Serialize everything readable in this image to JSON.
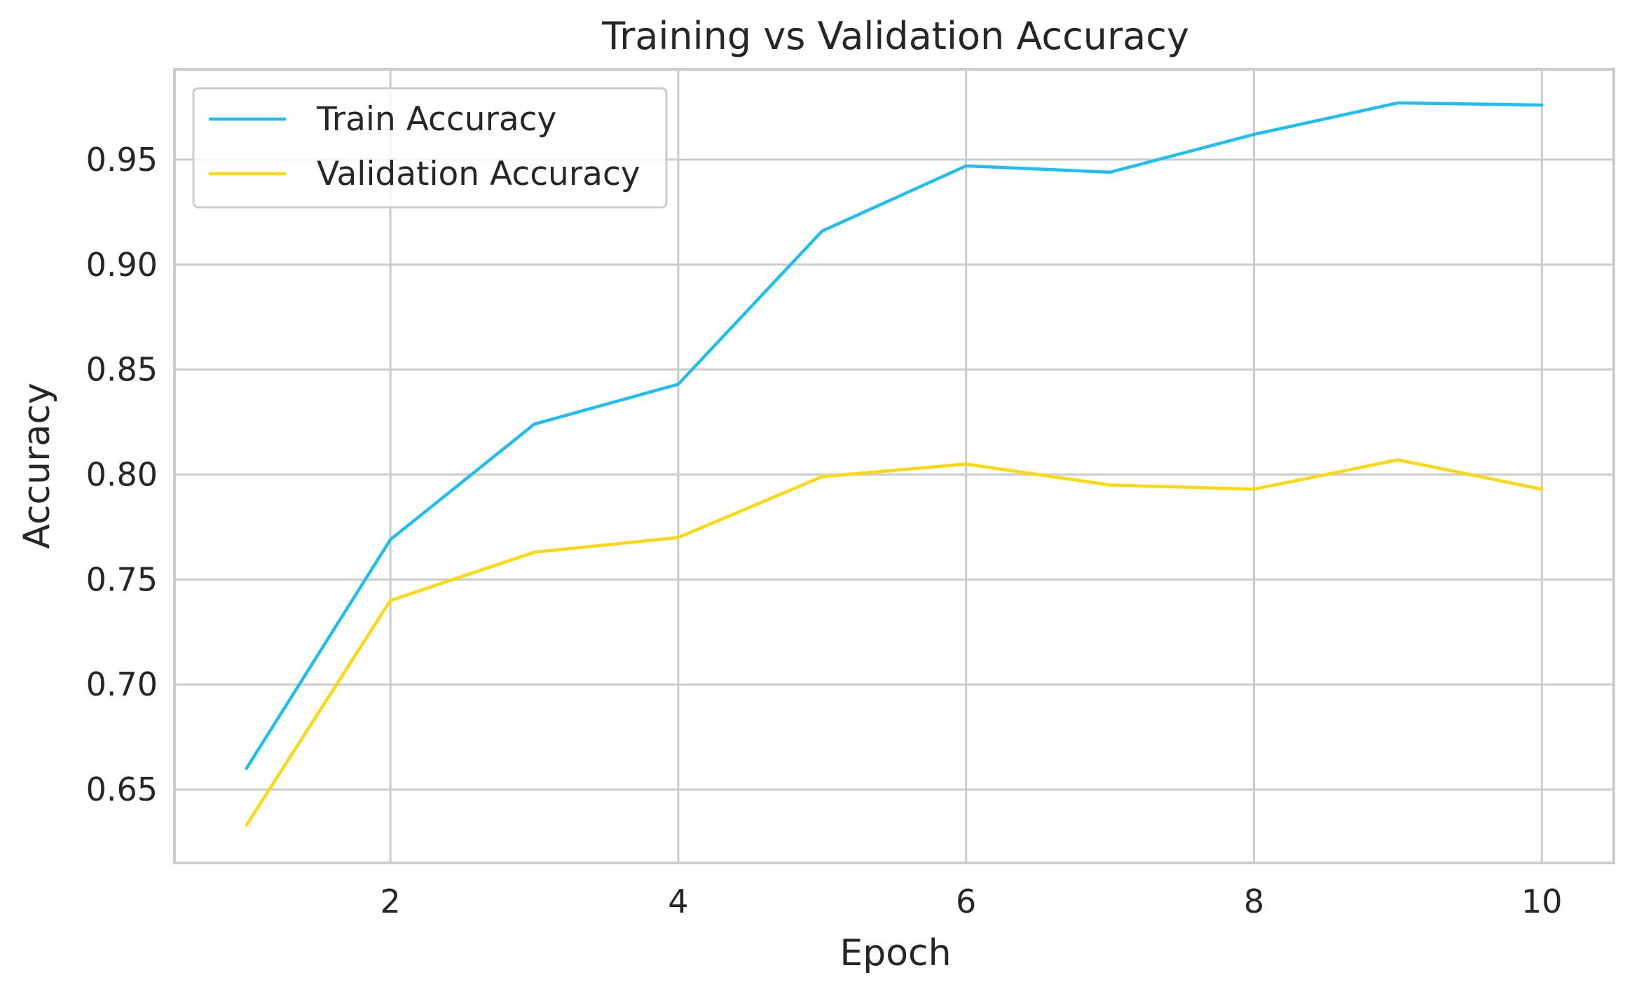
{
  "chart_data": {
    "type": "line",
    "title": "Training vs Validation Accuracy",
    "xlabel": "Epoch",
    "ylabel": "Accuracy",
    "x": [
      1,
      2,
      3,
      4,
      5,
      6,
      7,
      8,
      9,
      10
    ],
    "series": [
      {
        "name": "Train Accuracy",
        "color": "#1cbff0",
        "values": [
          0.66,
          0.769,
          0.824,
          0.843,
          0.916,
          0.947,
          0.944,
          0.962,
          0.977,
          0.976
        ]
      },
      {
        "name": "Validation Accuracy",
        "color": "#fcd90f",
        "values": [
          0.633,
          0.74,
          0.763,
          0.77,
          0.799,
          0.805,
          0.795,
          0.793,
          0.807,
          0.793
        ]
      }
    ],
    "xlim": [
      0.5,
      10.5
    ],
    "ylim": [
      0.615,
      0.993
    ],
    "xticks": [
      2,
      4,
      6,
      8,
      10
    ],
    "xtick_labels": [
      "2",
      "4",
      "6",
      "8",
      "10"
    ],
    "yticks": [
      0.65,
      0.7,
      0.75,
      0.8,
      0.85,
      0.9,
      0.95
    ],
    "ytick_labels": [
      "0.65",
      "0.70",
      "0.75",
      "0.80",
      "0.85",
      "0.90",
      "0.95"
    ],
    "grid": true,
    "legend_position": "top-left"
  }
}
